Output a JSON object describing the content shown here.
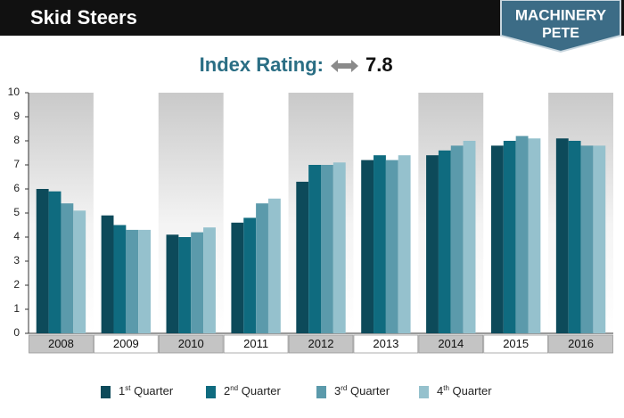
{
  "chart_data": {
    "type": "bar",
    "title": "Skid Steers",
    "logo": [
      "MACHINERY",
      "PETE"
    ],
    "subtitle": "Index Rating:",
    "index_value": 7.8,
    "categories": [
      "2008",
      "2009",
      "2010",
      "2011",
      "2012",
      "2013",
      "2014",
      "2015",
      "2016"
    ],
    "series": [
      {
        "name": "1st Quarter",
        "color": "#0d4a5a",
        "values": [
          6.0,
          4.9,
          4.1,
          4.6,
          6.3,
          7.2,
          7.4,
          7.8,
          8.1
        ]
      },
      {
        "name": "2nd Quarter",
        "color": "#0f6b7f",
        "values": [
          5.9,
          4.5,
          4.0,
          4.8,
          7.0,
          7.4,
          7.6,
          8.0,
          8.0
        ]
      },
      {
        "name": "3rd Quarter",
        "color": "#5b9aab",
        "values": [
          5.4,
          4.3,
          4.2,
          5.4,
          7.0,
          7.2,
          7.8,
          8.2,
          7.8
        ]
      },
      {
        "name": "4th Quarter",
        "color": "#95c1cd",
        "values": [
          5.1,
          4.3,
          4.4,
          5.6,
          7.1,
          7.4,
          8.0,
          8.1,
          7.8
        ]
      }
    ],
    "ylim": [
      0,
      10
    ],
    "yticks": [
      0,
      1,
      2,
      3,
      4,
      5,
      6,
      7,
      8,
      9,
      10
    ],
    "grid": false,
    "legend": "bottom"
  }
}
